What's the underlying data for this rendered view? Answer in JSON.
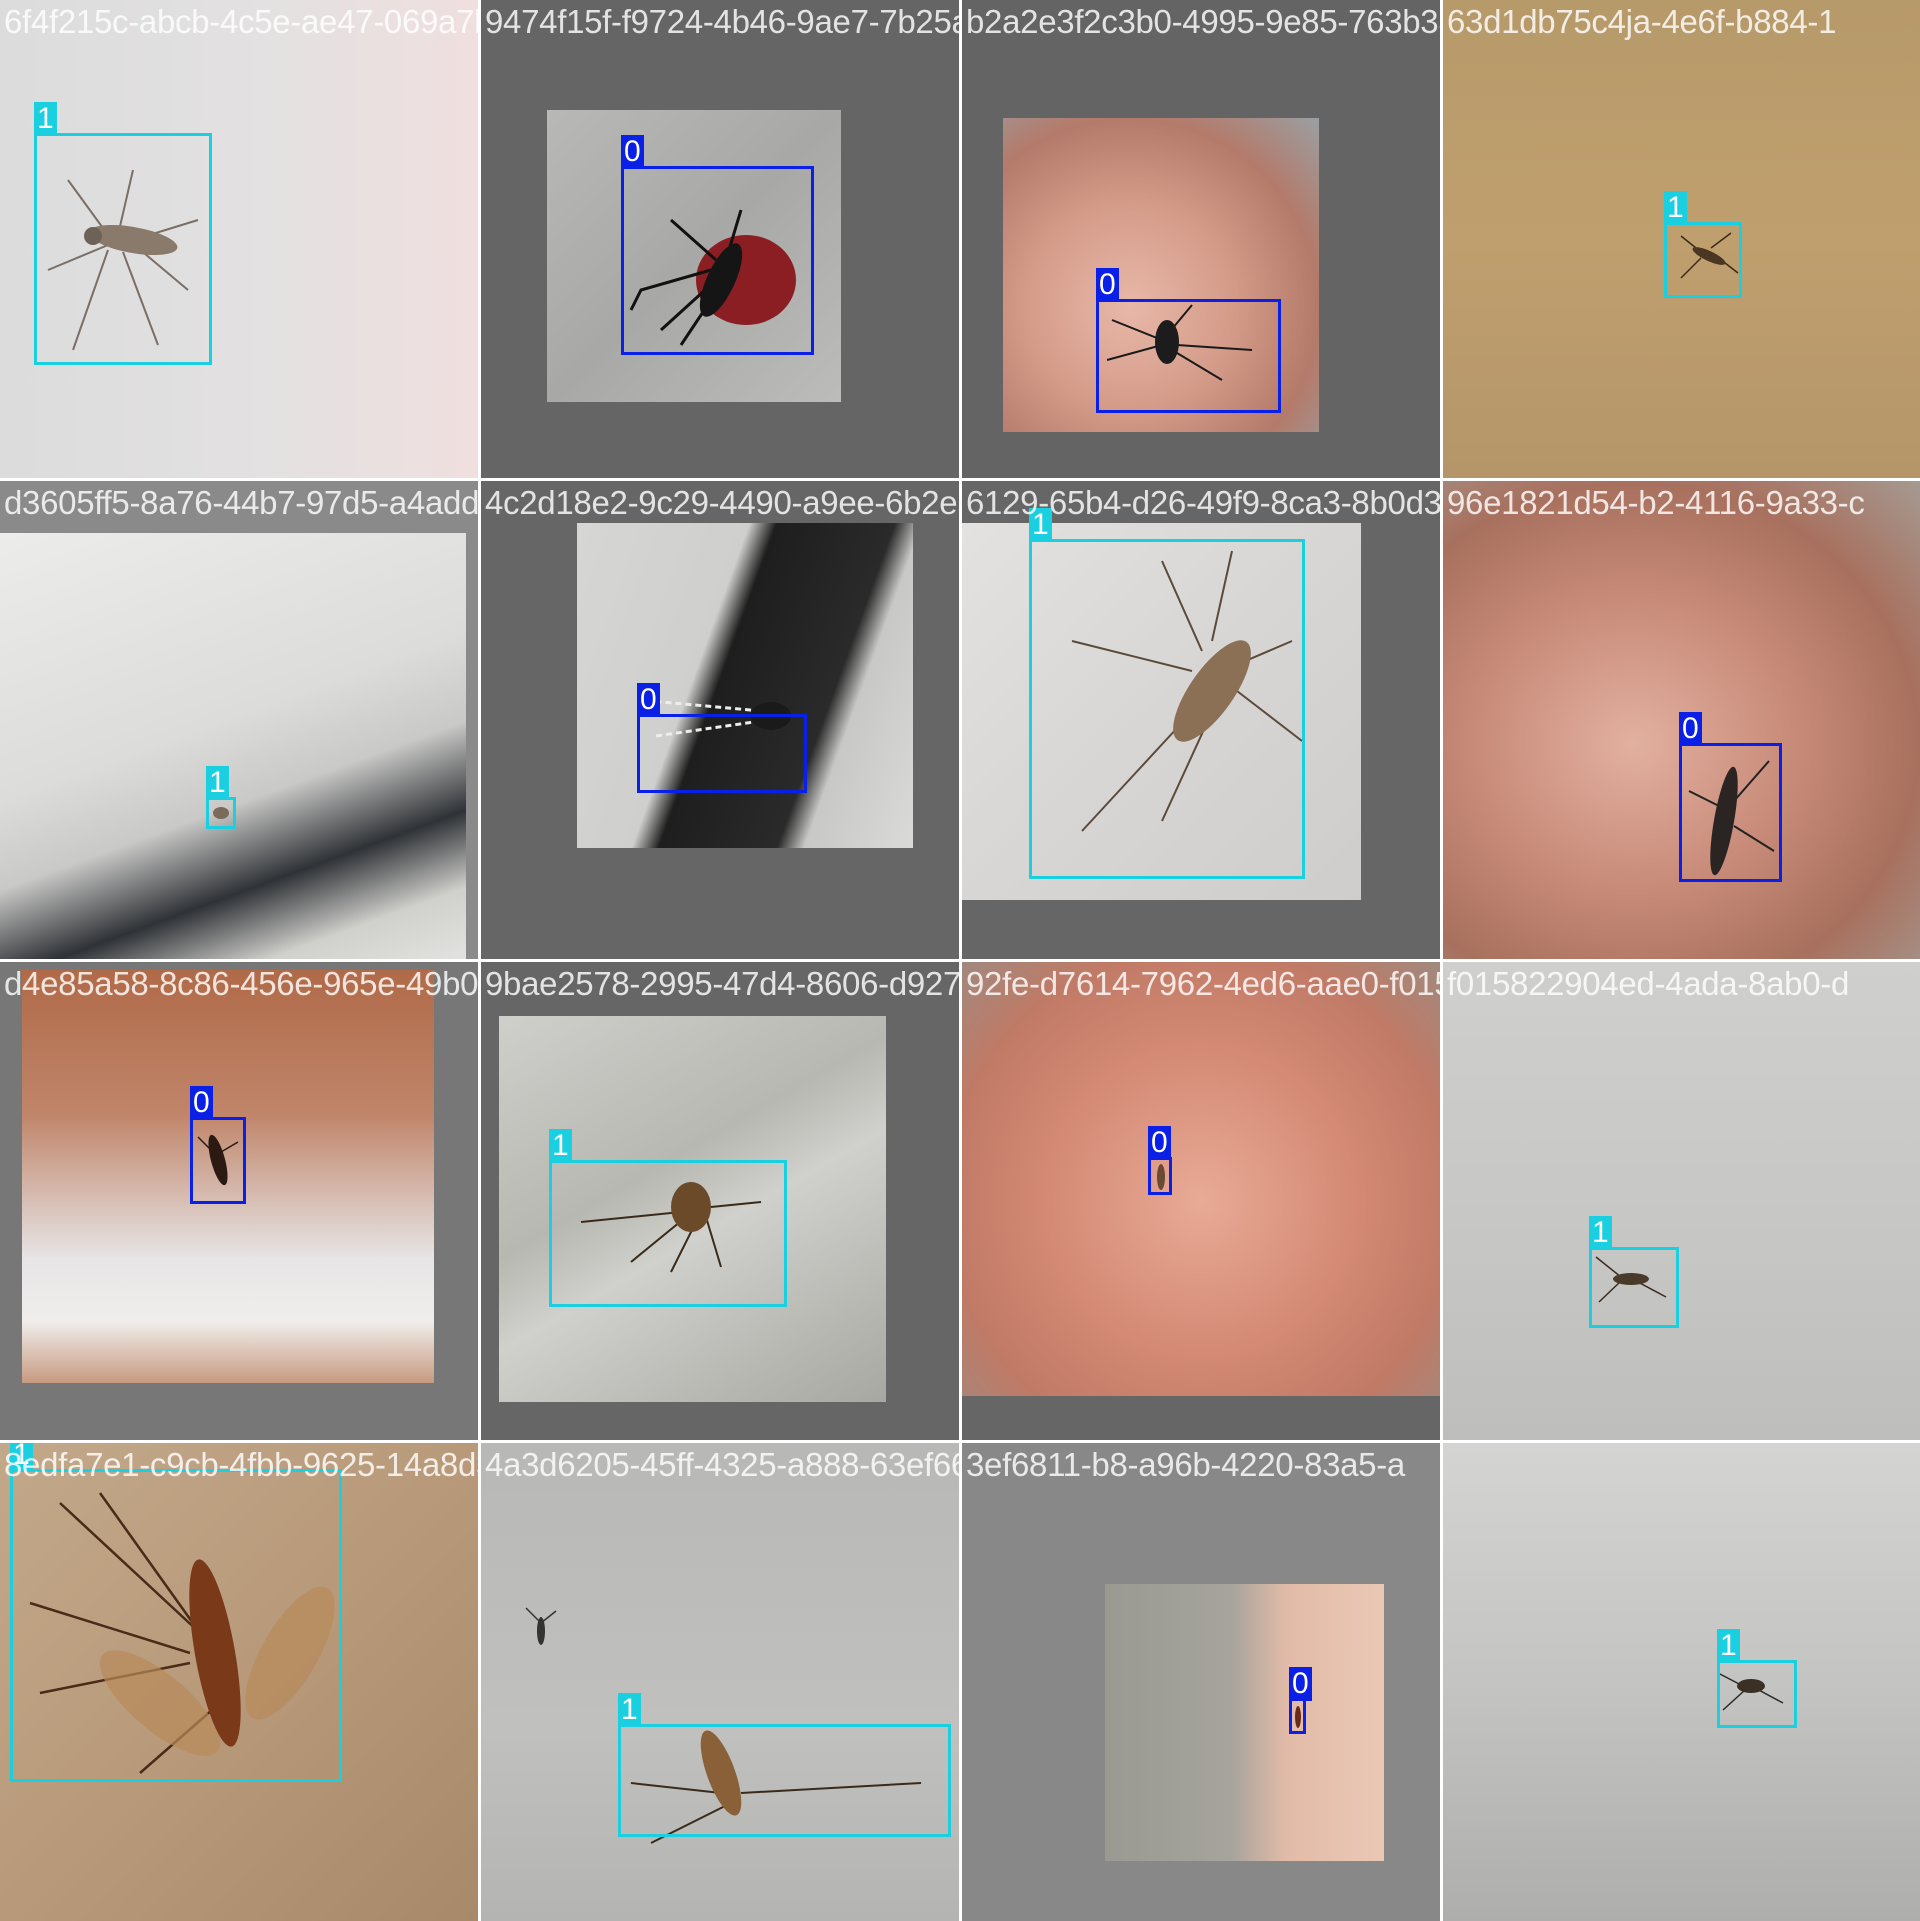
{
  "class_colors": {
    "0": "#0a20e6",
    "1": "#1ad0e0"
  },
  "tiles": [
    {
      "filename": "6f4f215c-abcb-4c5e-ae47-069a7b1a2f67_jpg",
      "labels": [
        "1"
      ]
    },
    {
      "filename": "9474f15f-f9724-4b46-9ae7-7b25a2532c63_jpg",
      "labels": [
        "0"
      ]
    },
    {
      "filename": "b2a2e3f2c3b0-4995-9e85-763b3870834f5_jpg",
      "labels": [
        "0"
      ]
    },
    {
      "filename": "63d1db75c4ja-4e6f-b884-1",
      "labels": [
        "1"
      ]
    },
    {
      "filename": "d3605ff5-8a76-44b7-97d5-a4addd8726bc_jpg",
      "labels": [
        "1"
      ]
    },
    {
      "filename": "4c2d18e2-9c29-4490-a9ee-6b2e5ab4ac26_jpg",
      "labels": [
        "0"
      ]
    },
    {
      "filename": "6129-65b4-d26-49f9-8ca3-8b0d3db1a55b_jpg",
      "labels": [
        "1"
      ]
    },
    {
      "filename": "96e1821d54-b2-4116-9a33-c",
      "labels": [
        "0"
      ]
    },
    {
      "filename": "d4e85a58-8c86-456e-965e-49b0a25782925_jpg",
      "labels": [
        "0"
      ]
    },
    {
      "filename": "9bae2578-2995-47d4-8606-d9277e3631479b2_jpg",
      "labels": [
        "1"
      ]
    },
    {
      "filename": "92fe-d7614-7962-4ed6-aae0-f01538290c3d_jpg",
      "labels": [
        "0"
      ]
    },
    {
      "filename": "f015822904ed-4ada-8ab0-d",
      "labels": [
        "1"
      ]
    },
    {
      "filename": "8edfa7e1-c9cb-4fbb-9625-14a8d3620545ff_jpg",
      "labels": [
        "1"
      ]
    },
    {
      "filename": "4a3d6205-45ff-4325-a888-63ef661b5e096_jpg",
      "labels": [
        "1"
      ]
    },
    {
      "filename": "3ef6811-b8-a96b-4220-83a5-a",
      "labels": [
        "0"
      ]
    },
    {
      "filename": "",
      "labels": [
        "1"
      ]
    }
  ]
}
